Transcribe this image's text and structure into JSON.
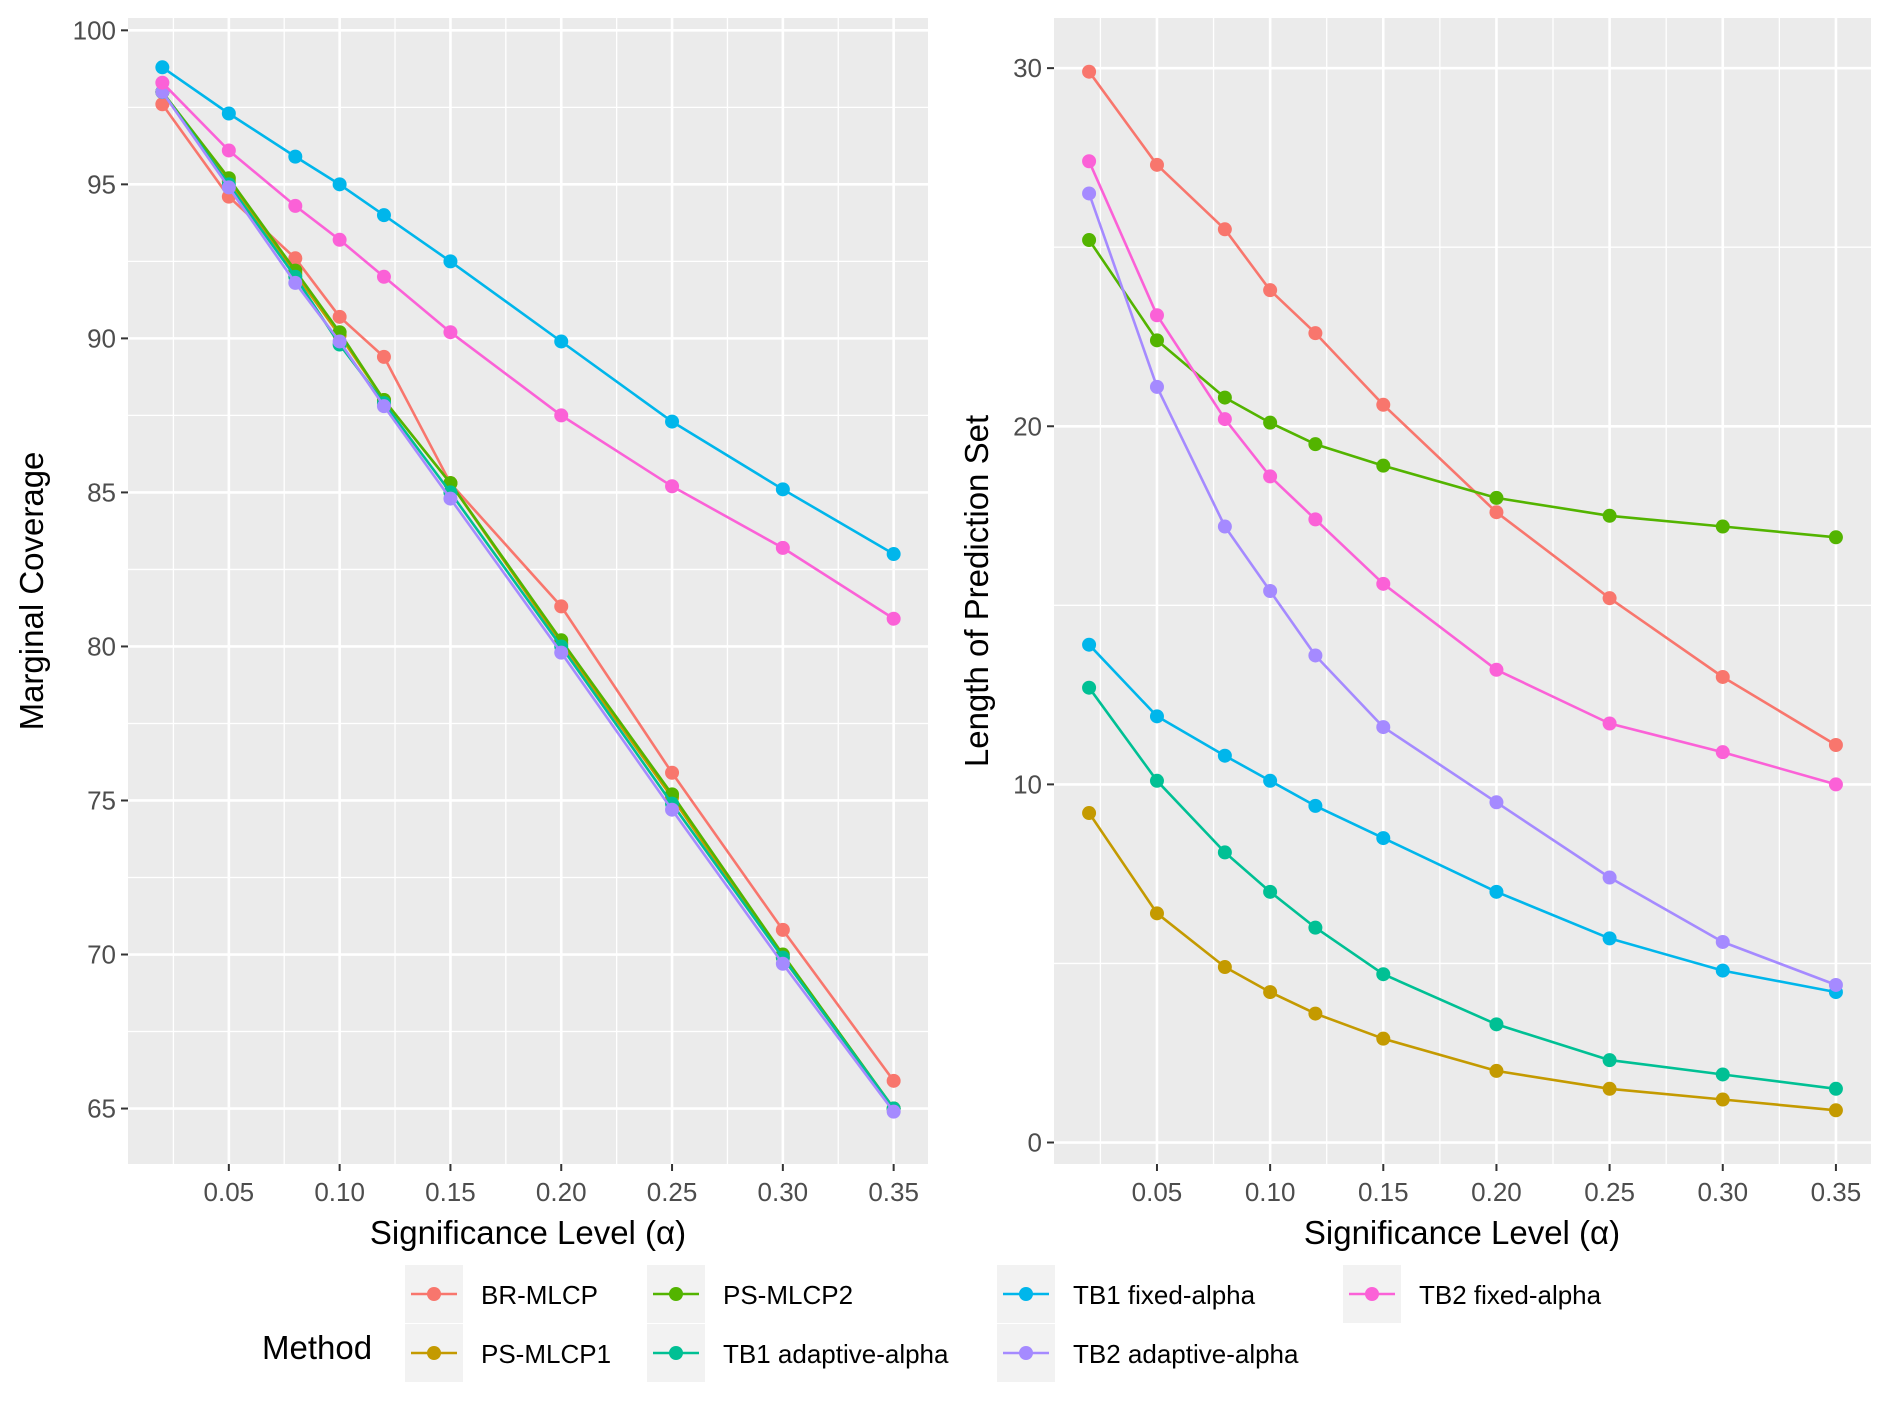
{
  "chart_data": [
    {
      "type": "line",
      "xlabel": "Significance Level (α)",
      "ylabel": "Marginal Coverage",
      "xlim": [
        0.0045,
        0.3655
      ],
      "ylim": [
        63.2,
        100.4
      ],
      "xticks": [
        0.05,
        0.1,
        0.15,
        0.2,
        0.25,
        0.3,
        0.35
      ],
      "xtick_labels": [
        "0.05",
        "0.10",
        "0.15",
        "0.20",
        "0.25",
        "0.30",
        "0.35"
      ],
      "yticks": [
        65,
        70,
        75,
        80,
        85,
        90,
        95,
        100
      ],
      "ytick_labels": [
        "65",
        "70",
        "75",
        "80",
        "85",
        "90",
        "95",
        "100"
      ],
      "x": [
        0.02,
        0.05,
        0.08,
        0.1,
        0.12,
        0.15,
        0.2,
        0.25,
        0.3,
        0.35
      ],
      "series": [
        {
          "name": "BR-MLCP",
          "values": [
            97.6,
            94.6,
            92.6,
            90.7,
            89.4,
            85.3,
            81.3,
            75.9,
            70.8,
            65.9
          ]
        },
        {
          "name": "PS-MLCP1",
          "values": [
            98.0,
            95.1,
            92.1,
            90.1,
            88.0,
            85.3,
            80.1,
            75.1,
            69.9,
            65.0
          ]
        },
        {
          "name": "PS-MLCP2",
          "values": [
            98.0,
            95.2,
            92.2,
            90.2,
            88.0,
            85.3,
            80.2,
            75.2,
            70.0,
            65.0
          ]
        },
        {
          "name": "TB1 adaptive-alpha",
          "values": [
            98.0,
            95.0,
            92.0,
            89.8,
            87.9,
            85.0,
            80.0,
            74.9,
            69.9,
            65.0
          ]
        },
        {
          "name": "TB1 fixed-alpha",
          "values": [
            98.8,
            97.3,
            95.9,
            95.0,
            94.0,
            92.5,
            89.9,
            87.3,
            85.1,
            83.0
          ]
        },
        {
          "name": "TB2 adaptive-alpha",
          "values": [
            98.0,
            94.9,
            91.8,
            89.9,
            87.8,
            84.8,
            79.8,
            74.7,
            69.7,
            64.9
          ]
        },
        {
          "name": "TB2 fixed-alpha",
          "values": [
            98.3,
            96.1,
            94.3,
            93.2,
            92.0,
            90.2,
            87.5,
            85.2,
            83.2,
            80.9
          ]
        }
      ]
    },
    {
      "type": "line",
      "xlabel": "Significance Level (α)",
      "ylabel": "Length of Prediction Set",
      "xlim": [
        0.0045,
        0.3655
      ],
      "ylim": [
        -0.6,
        31.4
      ],
      "xticks": [
        0.05,
        0.1,
        0.15,
        0.2,
        0.25,
        0.3,
        0.35
      ],
      "xtick_labels": [
        "0.05",
        "0.10",
        "0.15",
        "0.20",
        "0.25",
        "0.30",
        "0.35"
      ],
      "yticks": [
        0,
        10,
        20,
        30
      ],
      "ytick_labels": [
        "0",
        "10",
        "20",
        "30"
      ],
      "x": [
        0.02,
        0.05,
        0.08,
        0.1,
        0.12,
        0.15,
        0.2,
        0.25,
        0.3,
        0.35
      ],
      "series": [
        {
          "name": "BR-MLCP",
          "values": [
            29.9,
            27.3,
            25.5,
            23.8,
            22.6,
            20.6,
            17.6,
            15.2,
            13.0,
            11.1
          ]
        },
        {
          "name": "PS-MLCP1",
          "values": [
            9.2,
            6.4,
            4.9,
            4.2,
            3.6,
            2.9,
            2.0,
            1.5,
            1.2,
            0.9
          ]
        },
        {
          "name": "PS-MLCP2",
          "values": [
            25.2,
            22.4,
            20.8,
            20.1,
            19.5,
            18.9,
            18.0,
            17.5,
            17.2,
            16.9
          ]
        },
        {
          "name": "TB1 adaptive-alpha",
          "values": [
            12.7,
            10.1,
            8.1,
            7.0,
            6.0,
            4.7,
            3.3,
            2.3,
            1.9,
            1.5
          ]
        },
        {
          "name": "TB1 fixed-alpha",
          "values": [
            13.9,
            11.9,
            10.8,
            10.1,
            9.4,
            8.5,
            7.0,
            5.7,
            4.8,
            4.2
          ]
        },
        {
          "name": "TB2 adaptive-alpha",
          "values": [
            26.5,
            21.1,
            17.2,
            15.4,
            13.6,
            11.6,
            9.5,
            7.4,
            5.6,
            4.4
          ]
        },
        {
          "name": "TB2 fixed-alpha",
          "values": [
            27.4,
            23.1,
            20.2,
            18.6,
            17.4,
            15.6,
            13.2,
            11.7,
            10.9,
            10.0
          ]
        }
      ]
    }
  ],
  "legend": {
    "title": "Method",
    "entries": [
      {
        "label": "BR-MLCP",
        "color": "#F8766D"
      },
      {
        "label": "PS-MLCP1",
        "color": "#C49A00"
      },
      {
        "label": "PS-MLCP2",
        "color": "#53B400"
      },
      {
        "label": "TB1 adaptive-alpha",
        "color": "#00C094"
      },
      {
        "label": "TB1 fixed-alpha",
        "color": "#00B6EB"
      },
      {
        "label": "TB2 adaptive-alpha",
        "color": "#A58AFF"
      },
      {
        "label": "TB2 fixed-alpha",
        "color": "#FB61D7"
      }
    ]
  },
  "colors": {
    "panel_background": "#EBEBEB",
    "grid": "#FFFFFF",
    "axis_text": "#4D4D4D",
    "title_text": "#000000"
  }
}
